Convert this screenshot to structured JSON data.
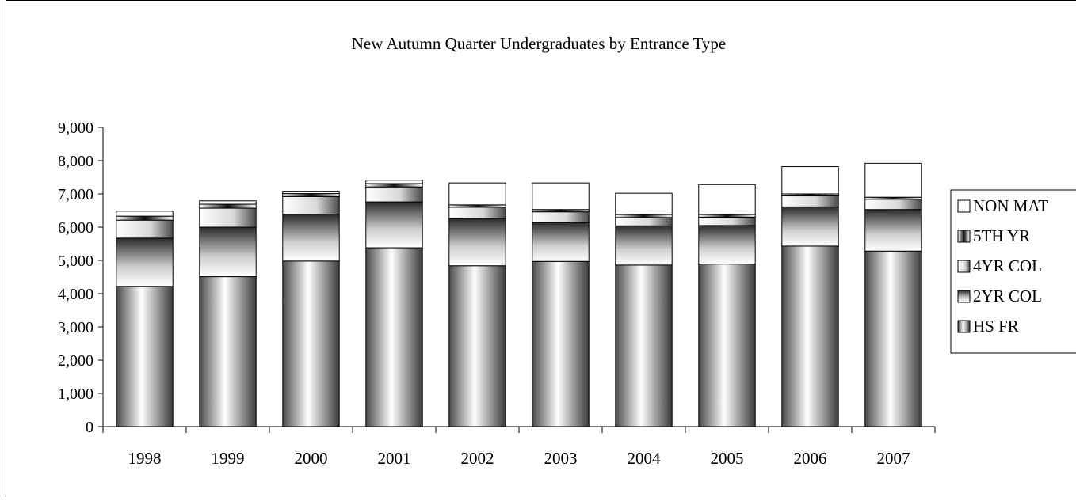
{
  "chart_data": {
    "type": "bar",
    "stacked": true,
    "title": "New Autumn Quarter Undergraduates by Entrance Type",
    "xlabel": "",
    "ylabel": "",
    "ylim": [
      0,
      9000
    ],
    "yticks": [
      "0",
      "1,000",
      "2,000",
      "3,000",
      "4,000",
      "5,000",
      "6,000",
      "7,000",
      "8,000",
      "9,000"
    ],
    "grid": false,
    "legend_position": "right",
    "categories": [
      "1998",
      "1999",
      "2000",
      "2001",
      "2002",
      "2003",
      "2004",
      "2005",
      "2006",
      "2007"
    ],
    "series": [
      {
        "name": "HS FR",
        "values": [
          4220,
          4510,
          4980,
          5380,
          4840,
          4970,
          4860,
          4890,
          5430,
          5280
        ]
      },
      {
        "name": "2YR COL",
        "values": [
          1450,
          1490,
          1410,
          1380,
          1420,
          1170,
          1180,
          1160,
          1180,
          1250
        ]
      },
      {
        "name": "4YR COL",
        "values": [
          540,
          570,
          530,
          450,
          340,
          320,
          250,
          250,
          330,
          310
        ]
      },
      {
        "name": "5TH YR",
        "values": [
          120,
          120,
          90,
          100,
          70,
          70,
          90,
          80,
          60,
          60
        ]
      },
      {
        "name": "NON MAT",
        "values": [
          150,
          100,
          70,
          100,
          660,
          800,
          640,
          900,
          820,
          1020
        ]
      }
    ],
    "legend_order": [
      "NON MAT",
      "5TH YR",
      "4YR COL",
      "2YR COL",
      "HS FR"
    ]
  }
}
